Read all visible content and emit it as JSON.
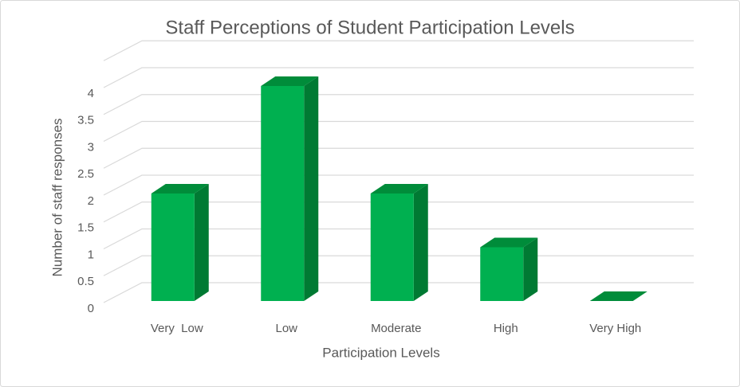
{
  "chart_data": {
    "type": "bar3d",
    "title": "Staff Perceptions of Student Participation Levels",
    "x_label": "Participation Levels",
    "y_label": "Number of staff responses",
    "categories": [
      "Very  Low",
      "Low",
      "Moderate",
      "High",
      "Very High"
    ],
    "values": [
      2,
      4,
      2,
      1,
      0
    ],
    "color": "#00b050",
    "ylim": [
      0,
      4.5
    ],
    "yticks": [
      0,
      0.5,
      1,
      1.5,
      2,
      2.5,
      3,
      3.5,
      4
    ],
    "grid": true
  }
}
